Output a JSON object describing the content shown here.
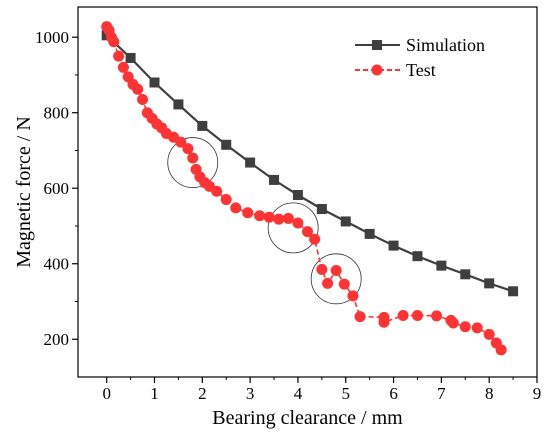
{
  "chart_data": {
    "type": "line",
    "title": "",
    "xlabel": "Bearing clearance / mm",
    "ylabel": "Magnetic force / N",
    "xlim": [
      -0.6,
      9
    ],
    "ylim": [
      100,
      1080
    ],
    "xticks": [
      0,
      1,
      2,
      3,
      4,
      5,
      6,
      7,
      8,
      9
    ],
    "yticks": [
      200,
      400,
      600,
      800,
      1000
    ],
    "grid": false,
    "legend": "top-right",
    "series": [
      {
        "name": "Simulation",
        "color": "#3f3f3f",
        "marker": "square",
        "x": [
          0,
          0.5,
          1,
          1.5,
          2,
          2.5,
          3,
          3.5,
          4,
          4.5,
          5,
          5.5,
          6,
          6.5,
          7,
          7.5,
          8,
          8.5
        ],
        "y": [
          1005,
          945,
          880,
          822,
          765,
          715,
          668,
          622,
          582,
          545,
          512,
          479,
          448,
          420,
          395,
          372,
          348,
          327
        ]
      },
      {
        "name": "Test",
        "color": "#ff3333",
        "marker": "circle",
        "x": [
          0,
          0.05,
          0.1,
          0.15,
          0.25,
          0.35,
          0.45,
          0.55,
          0.65,
          0.75,
          0.85,
          0.95,
          1.05,
          1.15,
          1.25,
          1.4,
          1.55,
          1.7,
          1.8,
          1.87,
          1.95,
          2.05,
          2.15,
          2.3,
          2.5,
          2.7,
          2.95,
          3.2,
          3.4,
          3.6,
          3.8,
          4.0,
          4.2,
          4.35,
          4.5,
          4.62,
          4.8,
          4.97,
          5.15,
          5.3,
          5.8,
          5.8,
          6.2,
          6.5,
          6.9,
          7.2,
          7.25,
          7.5,
          7.75,
          8.0,
          8.15,
          8.25
        ],
        "y": [
          1028,
          1018,
          1000,
          988,
          950,
          920,
          895,
          875,
          862,
          835,
          800,
          785,
          770,
          760,
          745,
          735,
          722,
          705,
          680,
          650,
          630,
          615,
          605,
          592,
          570,
          548,
          535,
          527,
          523,
          518,
          520,
          508,
          485,
          465,
          385,
          348,
          382,
          346,
          315,
          260,
          258,
          245,
          263,
          263,
          262,
          250,
          243,
          233,
          230,
          213,
          190,
          172
        ]
      }
    ],
    "annotations": [
      {
        "shape": "circle",
        "x": 1.8,
        "y": 668
      },
      {
        "shape": "circle",
        "x": 3.9,
        "y": 495
      },
      {
        "shape": "circle",
        "x": 4.8,
        "y": 360
      }
    ]
  }
}
